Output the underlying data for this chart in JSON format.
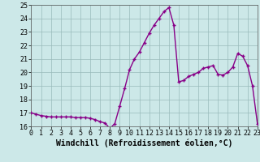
{
  "x": [
    0,
    0.5,
    1,
    1.5,
    2,
    2.5,
    3,
    3.5,
    4,
    4.5,
    5,
    5.5,
    6,
    6.5,
    7,
    7.5,
    8,
    8.5,
    9,
    9.5,
    10,
    10.5,
    11,
    11.5,
    12,
    12.5,
    13,
    13.5,
    14,
    14.5,
    15,
    15.5,
    16,
    16.5,
    17,
    17.5,
    18,
    18.5,
    19,
    19.5,
    20,
    20.5,
    21,
    21.5,
    22,
    22.5,
    23
  ],
  "y": [
    17.0,
    16.9,
    16.8,
    16.75,
    16.7,
    16.7,
    16.7,
    16.7,
    16.7,
    16.65,
    16.65,
    16.65,
    16.6,
    16.5,
    16.35,
    16.25,
    15.85,
    16.2,
    17.5,
    18.8,
    20.2,
    21.0,
    21.5,
    22.2,
    22.9,
    23.5,
    24.0,
    24.5,
    24.8,
    23.5,
    19.3,
    19.4,
    19.7,
    19.85,
    20.0,
    20.3,
    20.4,
    20.5,
    19.85,
    19.8,
    20.0,
    20.4,
    21.4,
    21.2,
    20.5,
    19.0,
    16.2
  ],
  "bg_color": "#cce8e8",
  "line_color": "#880088",
  "marker_color": "#880088",
  "grid_color": "#99bbbb",
  "axis_bg": "#cce8e8",
  "xlim": [
    0,
    23
  ],
  "ylim": [
    16,
    25
  ],
  "yticks": [
    16,
    17,
    18,
    19,
    20,
    21,
    22,
    23,
    24,
    25
  ],
  "xticks": [
    0,
    1,
    2,
    3,
    4,
    5,
    6,
    7,
    8,
    9,
    10,
    11,
    12,
    13,
    14,
    15,
    16,
    17,
    18,
    19,
    20,
    21,
    22,
    23
  ],
  "xlabel": "Windchill (Refroidissement éolien,°C)",
  "xlabel_fontsize": 7,
  "tick_fontsize": 6,
  "line_width": 1.0,
  "marker_size": 3.5,
  "fig_width": 3.2,
  "fig_height": 2.0,
  "fig_dpi": 100
}
